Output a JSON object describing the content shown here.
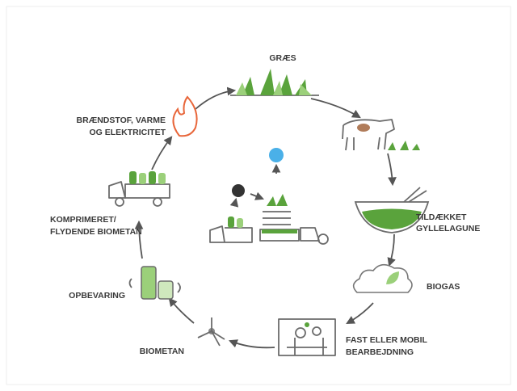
{
  "nodes": [
    {
      "lines": [
        "GRÆS"
      ]
    },
    {
      "lines": [
        "TILDÆKKET",
        "GYLLELAGUNE"
      ]
    },
    {
      "lines": [
        "BIOGAS"
      ]
    },
    {
      "lines": [
        "FAST ELLER MOBIL",
        "BEARBEJDNING"
      ]
    },
    {
      "lines": [
        "BIOMETAN"
      ]
    },
    {
      "lines": [
        "OPBEVARING"
      ]
    },
    {
      "lines": [
        "KOMPRIMERET/",
        "FLYDENDE BIOMETAN"
      ]
    },
    {
      "lines": [
        "BRÆNDSTOF, VARME",
        "OG ELEKTRICITET"
      ]
    }
  ]
}
